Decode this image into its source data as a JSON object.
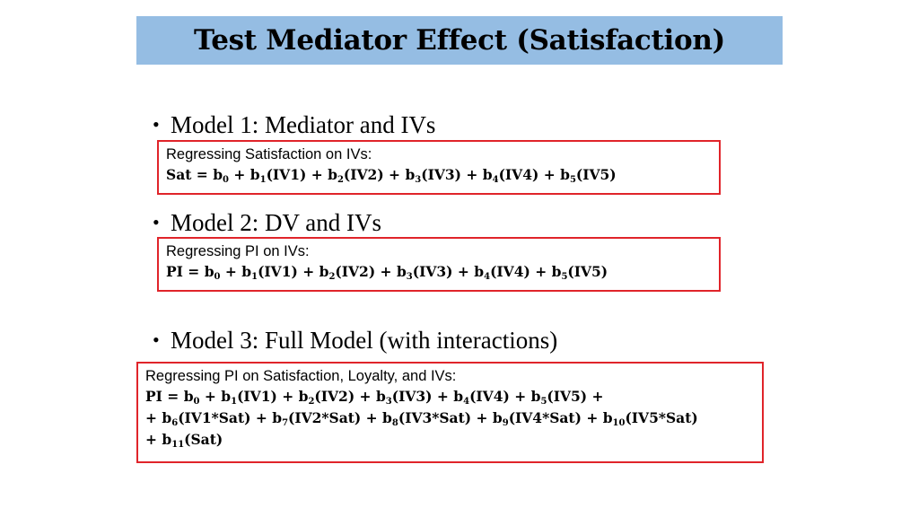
{
  "title": "Test Mediator Effect (Satisfaction)",
  "bullets": [
    "Model 1: Mediator and IVs",
    "Model 2: DV and IVs",
    "Model 3: Full Model (with interactions)"
  ],
  "boxes": [
    {
      "description": "Regressing Satisfaction on IVs:",
      "equations": [
        "Sat = b_0 + b_1(IV1) + b_2(IV2) + b_3(IV3) + b_4(IV4) + b_5(IV5)"
      ]
    },
    {
      "description": "Regressing PI on IVs:",
      "equations": [
        "PI = b_0 + b_1(IV1) + b_2(IV2) + b_3(IV3) + b_4(IV4) + b_5(IV5)"
      ]
    },
    {
      "description": "Regressing PI on Satisfaction, Loyalty, and IVs:",
      "equations": [
        "PI = b_0 + b_1(IV1) + b_2(IV2) + b_3(IV3) + b_4(IV4) + b_5(IV5) +",
        "+ b_6(IV1*Sat) + b_7(IV2*Sat) + b_8(IV3*Sat) + b_9(IV4*Sat) + b_10(IV5*Sat)",
        "+ b_11(Sat)"
      ]
    }
  ]
}
